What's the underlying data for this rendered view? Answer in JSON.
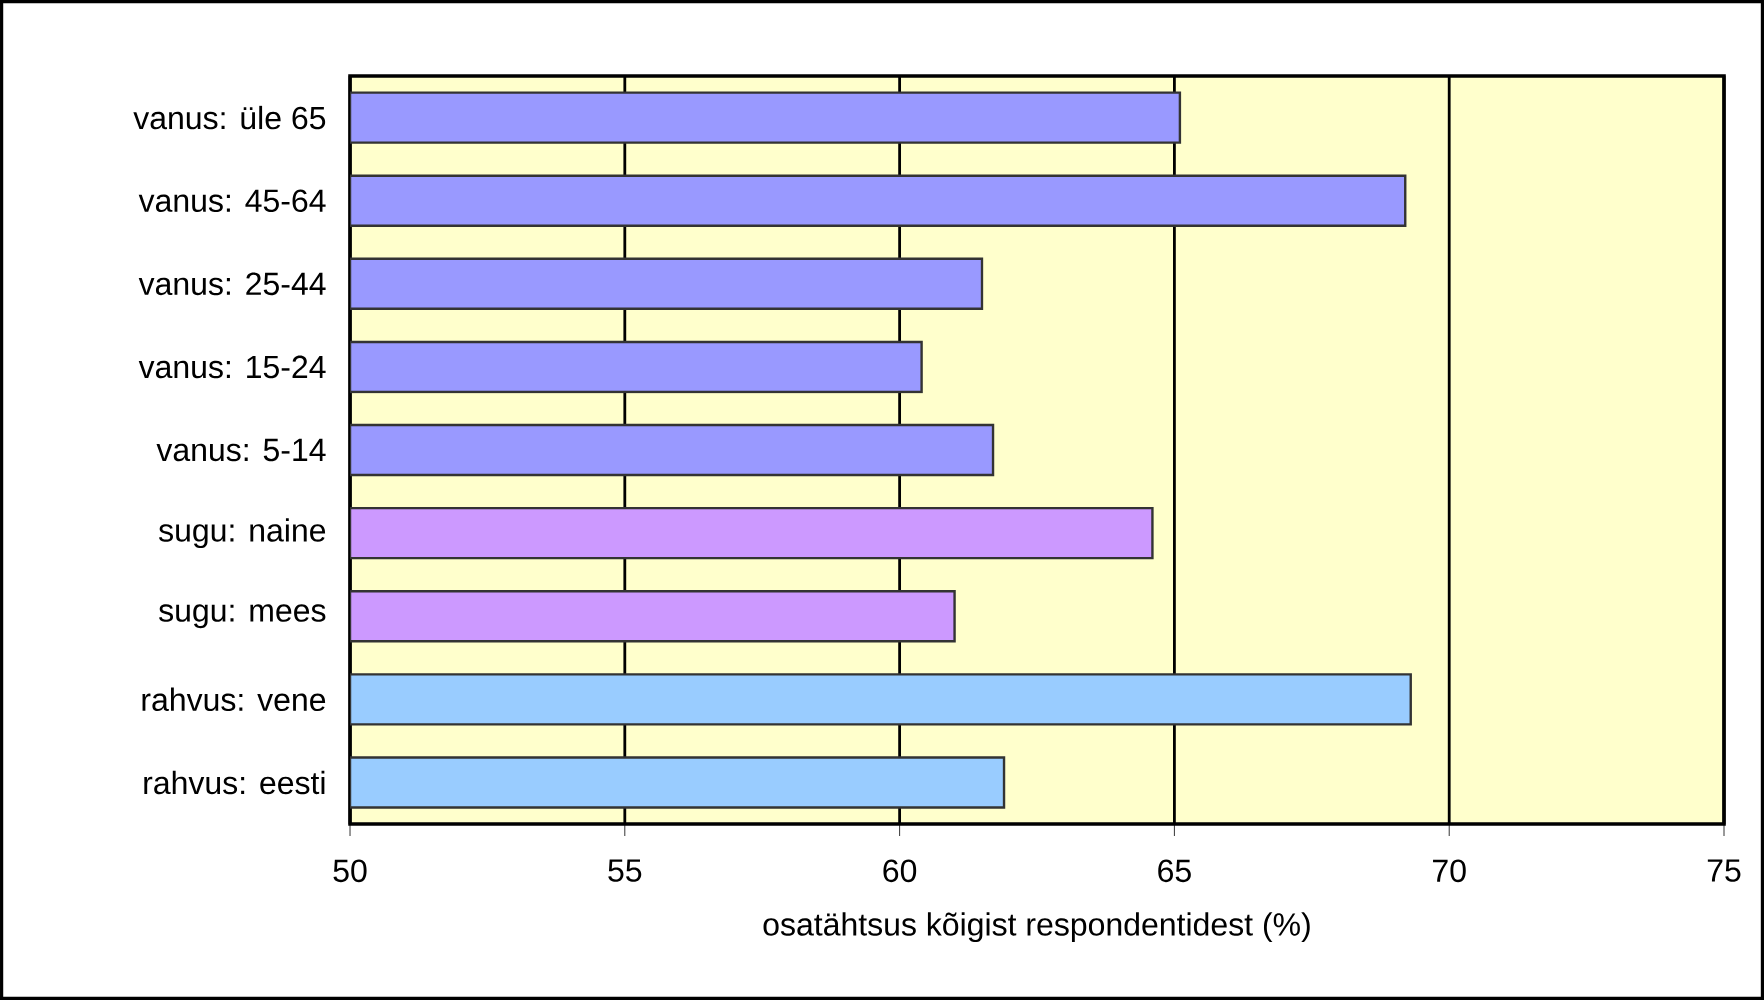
{
  "chart_data": {
    "type": "bar",
    "orientation": "horizontal",
    "xlabel": "osatähtsus kõigist respondentidest (%)",
    "categories": [
      "vanus: üle 65",
      "vanus: 45-64",
      "vanus: 25-44",
      "vanus: 15-24",
      "vanus: 5-14",
      "sugu: naine",
      "sugu: mees",
      "rahvus: vene",
      "rahvus: eesti"
    ],
    "values": [
      65.1,
      69.2,
      61.5,
      60.4,
      61.7,
      64.6,
      61.0,
      69.3,
      61.9
    ],
    "colors": [
      "#9999ff",
      "#9999ff",
      "#9999ff",
      "#9999ff",
      "#9999ff",
      "#cc99ff",
      "#cc99ff",
      "#99ccff",
      "#99ccff"
    ],
    "xlim": [
      50,
      75
    ],
    "xticks": [
      50,
      55,
      60,
      65,
      70,
      75
    ],
    "grid": "x"
  }
}
